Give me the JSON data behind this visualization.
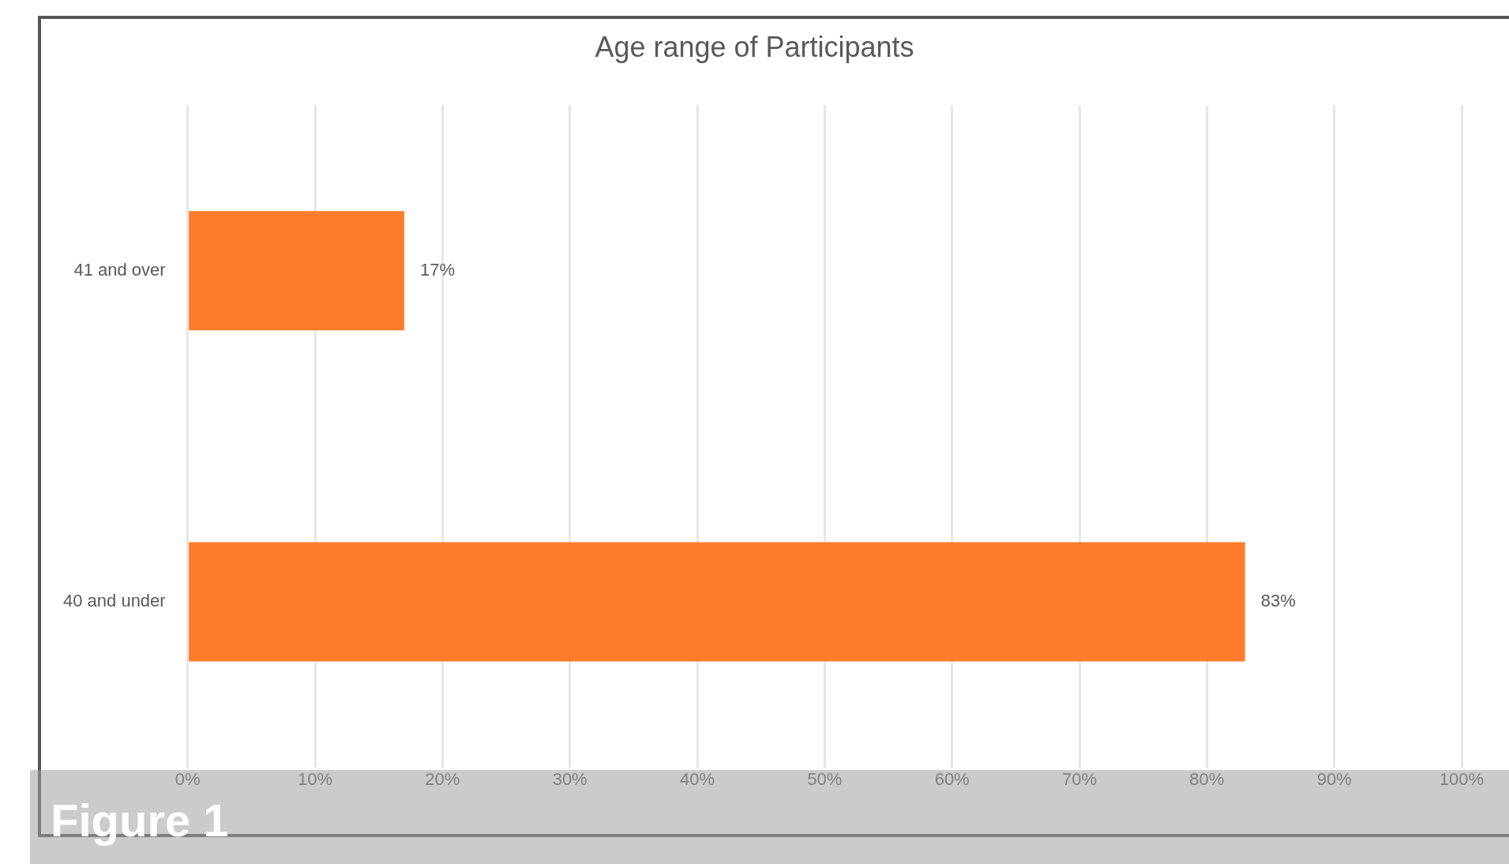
{
  "chart_data": {
    "type": "bar",
    "orientation": "horizontal",
    "title": "Age range of Participants",
    "categories": [
      "41 and over",
      "40 and under"
    ],
    "values": [
      17,
      83
    ],
    "color": "#fe7c2c",
    "value_labels": [
      "17%",
      "83%"
    ],
    "xlim": [
      0,
      100
    ],
    "xticks": [
      {
        "value": 0,
        "label": "0%"
      },
      {
        "value": 10,
        "label": "10%"
      },
      {
        "value": 20,
        "label": "20%"
      },
      {
        "value": 30,
        "label": "30%"
      },
      {
        "value": 40,
        "label": "40%"
      },
      {
        "value": 50,
        "label": "50%"
      },
      {
        "value": 60,
        "label": "60%"
      },
      {
        "value": 70,
        "label": "70%"
      },
      {
        "value": 80,
        "label": "80%"
      },
      {
        "value": 90,
        "label": "90%"
      },
      {
        "value": 100,
        "label": "100%"
      }
    ],
    "grid": "x",
    "annotations": [
      "Figure 1"
    ]
  }
}
